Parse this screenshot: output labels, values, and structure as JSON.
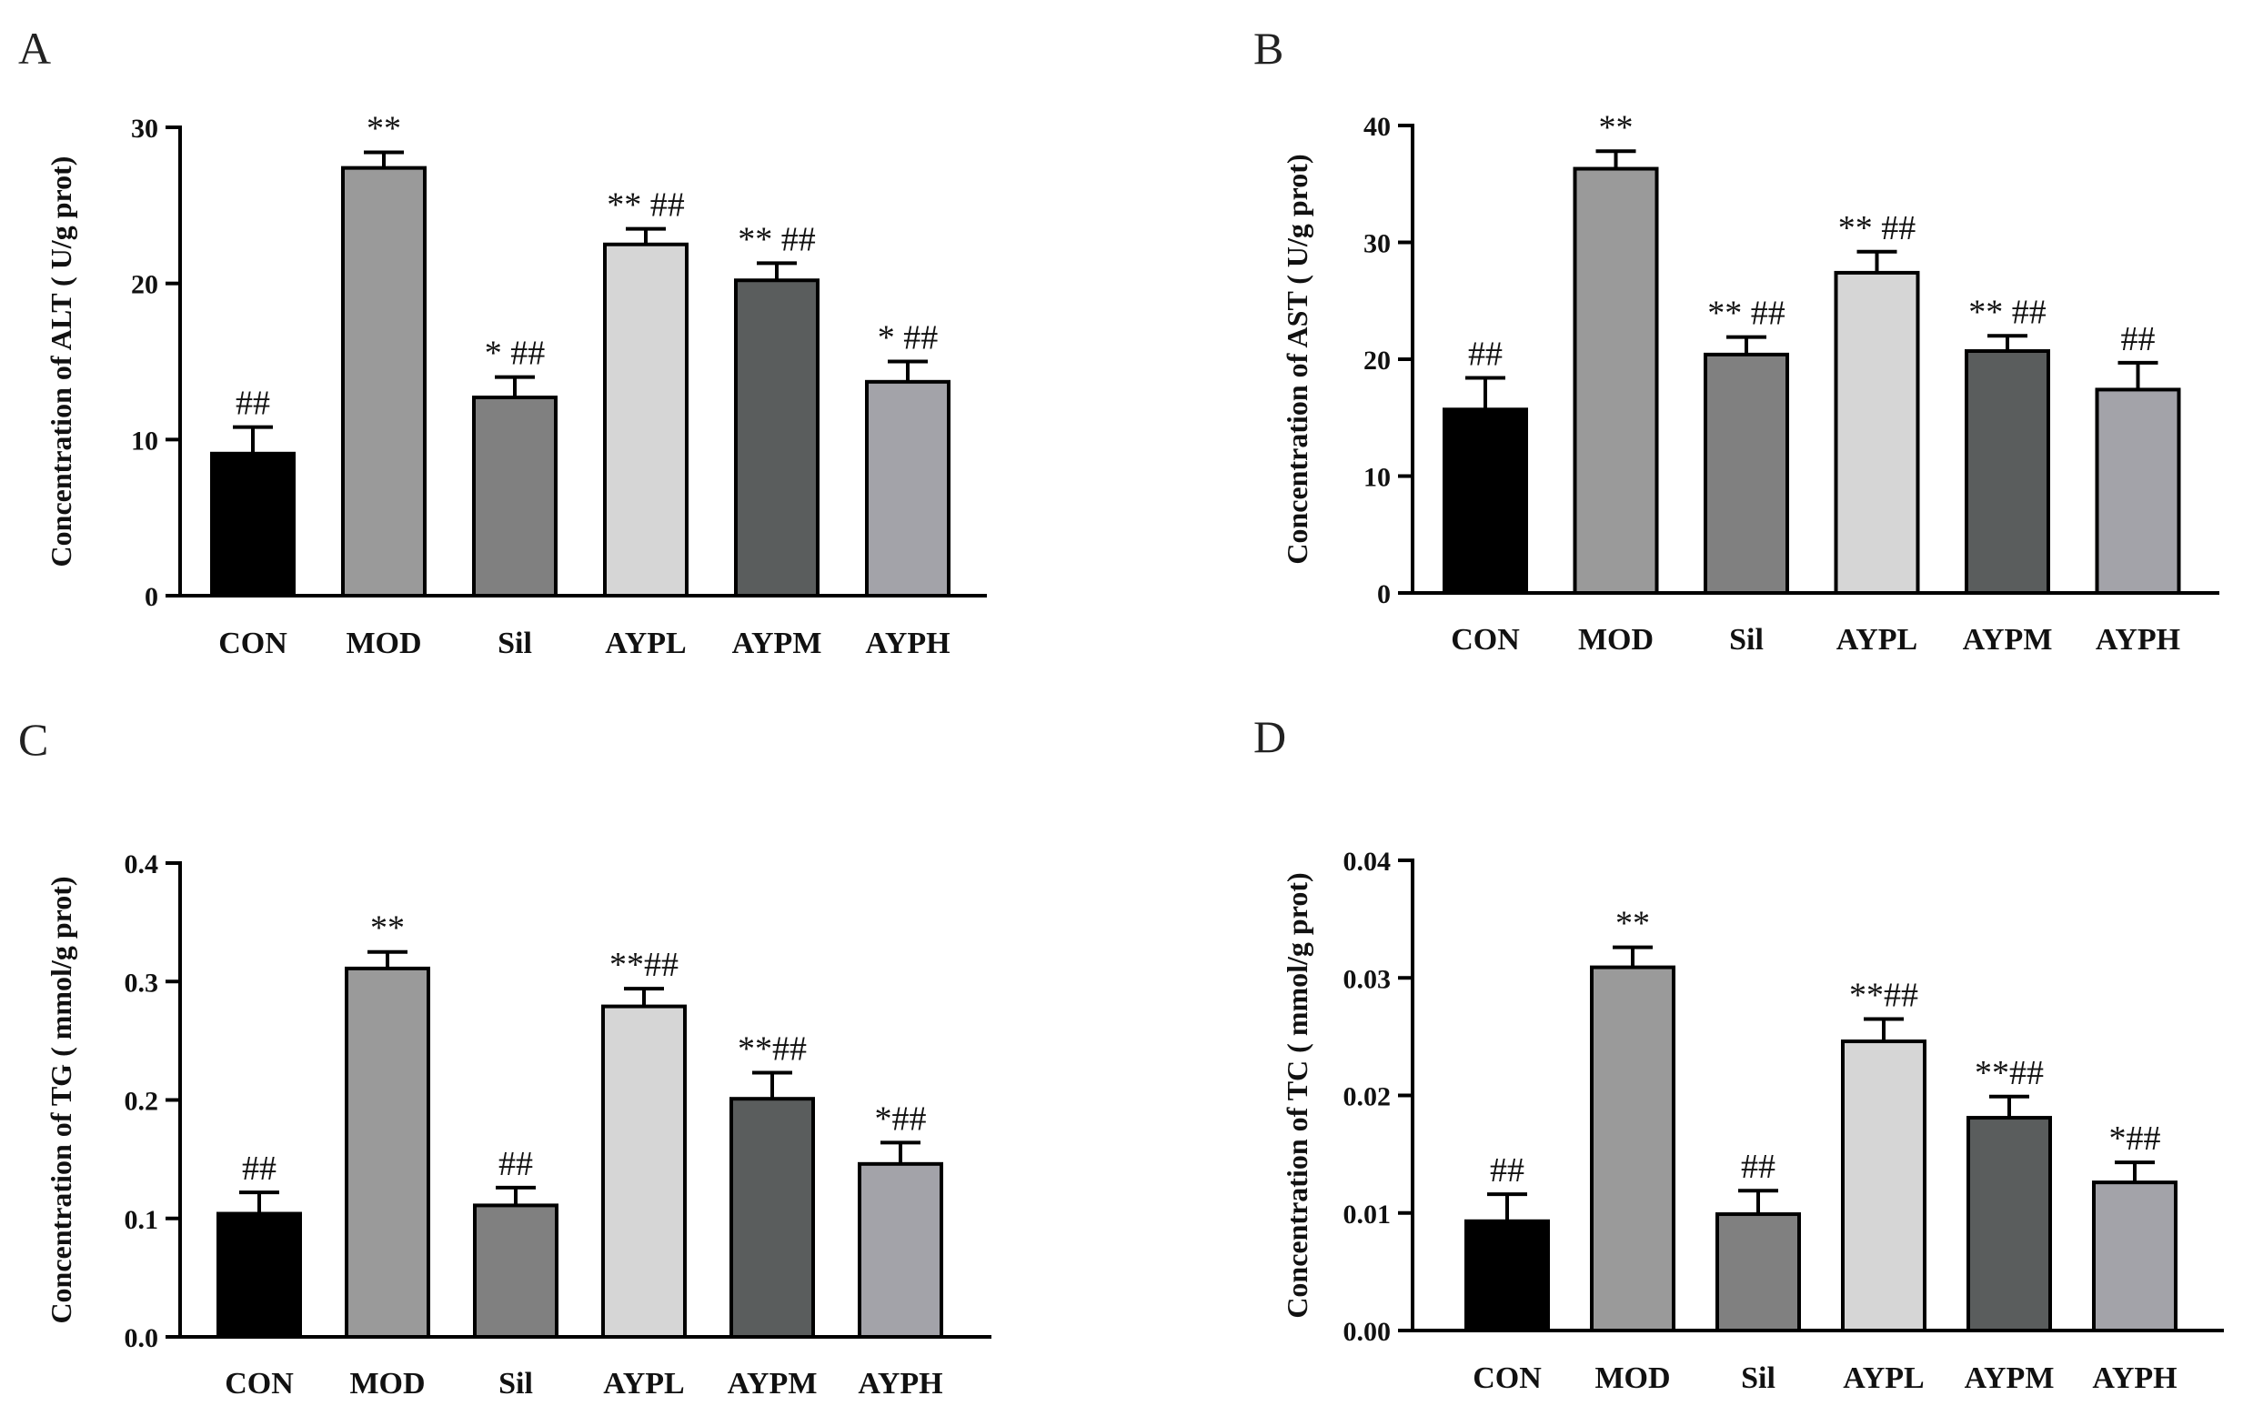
{
  "figure": {
    "panel_labels": [
      "A",
      "B",
      "C",
      "D"
    ]
  },
  "colors": {
    "CON": "#000000",
    "MOD": "#9a9a9a",
    "Sil": "#808080",
    "AYPL": "#d6d6d6",
    "AYPM": "#5a5d5d",
    "AYPH": "#a3a3a9"
  },
  "chart_data": [
    {
      "type": "bar",
      "panel": "A",
      "ylabel": "Concentration of ALT ( U/g prot)",
      "categories": [
        "CON",
        "MOD",
        "Sil",
        "AYPL",
        "AYPM",
        "AYPH"
      ],
      "values": [
        9.1,
        27.4,
        12.7,
        22.5,
        20.2,
        13.7
      ],
      "errors": [
        1.7,
        1.0,
        1.3,
        1.0,
        1.1,
        1.3
      ],
      "significance": [
        "##",
        "**",
        "* ##",
        "** ##",
        "** ##",
        "* ##"
      ],
      "ylim": [
        0,
        30
      ],
      "yticks": [
        0,
        10,
        20,
        30
      ],
      "ytick_labels": [
        "0",
        "10",
        "20",
        "30"
      ]
    },
    {
      "type": "bar",
      "panel": "B",
      "ylabel": "Concentration of AST ( U/g prot)",
      "categories": [
        "CON",
        "MOD",
        "Sil",
        "AYPL",
        "AYPM",
        "AYPH"
      ],
      "values": [
        15.7,
        36.3,
        20.4,
        27.4,
        20.7,
        17.4
      ],
      "errors": [
        2.7,
        1.5,
        1.5,
        1.8,
        1.3,
        2.3
      ],
      "significance": [
        "##",
        "**",
        "** ##",
        "** ##",
        "** ##",
        "##"
      ],
      "ylim": [
        0,
        40
      ],
      "yticks": [
        0,
        10,
        20,
        30,
        40
      ],
      "ytick_labels": [
        "0",
        "10",
        "20",
        "30",
        "40"
      ]
    },
    {
      "type": "bar",
      "panel": "C",
      "ylabel": "Concentration of TG ( mmol/g prot)",
      "categories": [
        "CON",
        "MOD",
        "Sil",
        "AYPL",
        "AYPM",
        "AYPH"
      ],
      "values": [
        0.104,
        0.311,
        0.111,
        0.279,
        0.201,
        0.146
      ],
      "errors": [
        0.018,
        0.014,
        0.015,
        0.015,
        0.022,
        0.018
      ],
      "significance": [
        "##",
        "**",
        "##",
        "**##",
        "**##",
        "*##"
      ],
      "ylim": [
        0,
        0.4
      ],
      "yticks": [
        0,
        0.1,
        0.2,
        0.3,
        0.4
      ],
      "ytick_labels": [
        "0.0",
        "0.1",
        "0.2",
        "0.3",
        "0.4"
      ]
    },
    {
      "type": "bar",
      "panel": "D",
      "ylabel": "Concentration of TC ( mmol/g prot)",
      "categories": [
        "CON",
        "MOD",
        "Sil",
        "AYPL",
        "AYPM",
        "AYPH"
      ],
      "values": [
        0.0093,
        0.0309,
        0.0099,
        0.0246,
        0.0181,
        0.0126
      ],
      "errors": [
        0.0023,
        0.0017,
        0.002,
        0.0019,
        0.0018,
        0.0017
      ],
      "significance": [
        "##",
        "**",
        "##",
        "**##",
        "**##",
        "*##"
      ],
      "ylim": [
        0,
        0.04
      ],
      "yticks": [
        0,
        0.01,
        0.02,
        0.03,
        0.04
      ],
      "ytick_labels": [
        "0.00",
        "0.01",
        "0.02",
        "0.03",
        "0.04"
      ]
    }
  ]
}
